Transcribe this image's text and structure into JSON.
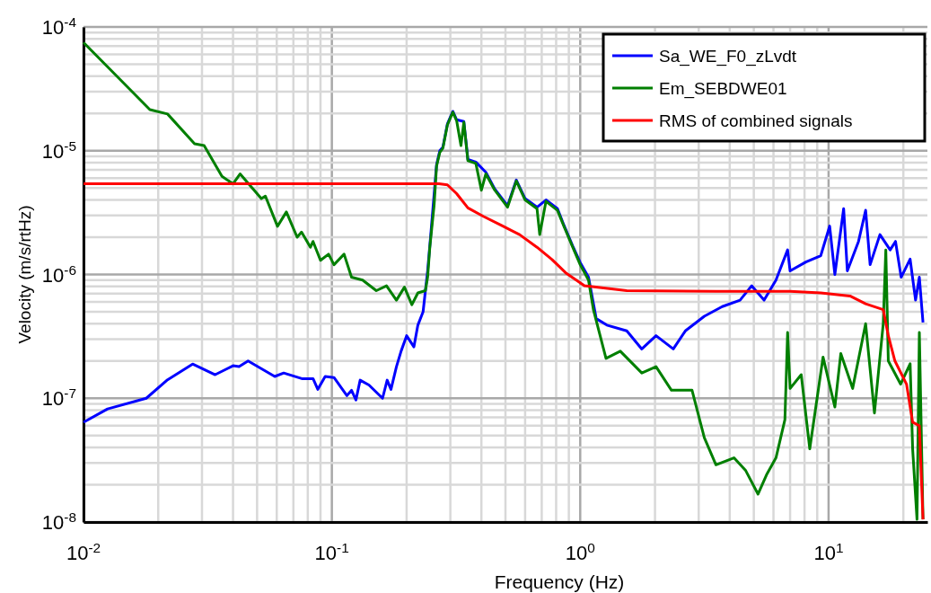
{
  "chart_data": {
    "type": "line",
    "xlabel": "Frequency (Hz)",
    "ylabel": "Velocity (m/s/rtHz)",
    "log": "xy",
    "grid": true,
    "legend": "top right",
    "marker": "none",
    "line_style": "solid",
    "xlim": [
      0.01,
      25
    ],
    "ylim": [
      1e-08,
      0.0001
    ],
    "xticks": [
      {
        "value": 0.01,
        "label": "10$^{-2}$"
      },
      {
        "value": 0.02,
        "label": null
      },
      {
        "value": 0.03,
        "label": null
      },
      {
        "value": 0.04,
        "label": null
      },
      {
        "value": 0.05,
        "label": null
      },
      {
        "value": 0.06,
        "label": null
      },
      {
        "value": 0.07,
        "label": null
      },
      {
        "value": 0.08,
        "label": null
      },
      {
        "value": 0.09,
        "label": null
      },
      {
        "value": 0.1,
        "label": "10$^{-1}$"
      },
      {
        "value": 0.2,
        "label": null
      },
      {
        "value": 0.3,
        "label": null
      },
      {
        "value": 0.4,
        "label": null
      },
      {
        "value": 0.5,
        "label": null
      },
      {
        "value": 0.6,
        "label": null
      },
      {
        "value": 0.7,
        "label": null
      },
      {
        "value": 0.8,
        "label": null
      },
      {
        "value": 0.9,
        "label": null
      },
      {
        "value": 1,
        "label": "10$^{0}$"
      },
      {
        "value": 2,
        "label": null
      },
      {
        "value": 3,
        "label": null
      },
      {
        "value": 4,
        "label": null
      },
      {
        "value": 5,
        "label": null
      },
      {
        "value": 6,
        "label": null
      },
      {
        "value": 7,
        "label": null
      },
      {
        "value": 8,
        "label": null
      },
      {
        "value": 9,
        "label": null
      },
      {
        "value": 10,
        "label": "10$^{1}$"
      },
      {
        "value": 20,
        "label": null
      }
    ],
    "yticks": [
      {
        "value": 1e-08,
        "label": "10$^{-8}$"
      },
      {
        "value": 2e-08,
        "label": null
      },
      {
        "value": 3e-08,
        "label": null
      },
      {
        "value": 4e-08,
        "label": null
      },
      {
        "value": 5e-08,
        "label": null
      },
      {
        "value": 6e-08,
        "label": null
      },
      {
        "value": 7e-08,
        "label": null
      },
      {
        "value": 8e-08,
        "label": null
      },
      {
        "value": 9e-08,
        "label": null
      },
      {
        "value": 1e-07,
        "label": "10$^{-7}$"
      },
      {
        "value": 2e-07,
        "label": null
      },
      {
        "value": 3e-07,
        "label": null
      },
      {
        "value": 4e-07,
        "label": null
      },
      {
        "value": 5e-07,
        "label": null
      },
      {
        "value": 6e-07,
        "label": null
      },
      {
        "value": 7e-07,
        "label": null
      },
      {
        "value": 8e-07,
        "label": null
      },
      {
        "value": 9e-07,
        "label": null
      },
      {
        "value": 1e-06,
        "label": "10$^{-6}$"
      },
      {
        "value": 2e-06,
        "label": null
      },
      {
        "value": 3e-06,
        "label": null
      },
      {
        "value": 4e-06,
        "label": null
      },
      {
        "value": 5e-06,
        "label": null
      },
      {
        "value": 6e-06,
        "label": null
      },
      {
        "value": 7e-06,
        "label": null
      },
      {
        "value": 8e-06,
        "label": null
      },
      {
        "value": 9e-06,
        "label": null
      },
      {
        "value": 1e-05,
        "label": "10$^{-5}$"
      },
      {
        "value": 2e-05,
        "label": null
      },
      {
        "value": 3e-05,
        "label": null
      },
      {
        "value": 4e-05,
        "label": null
      },
      {
        "value": 5e-05,
        "label": null
      },
      {
        "value": 6e-05,
        "label": null
      },
      {
        "value": 7e-05,
        "label": null
      },
      {
        "value": 8e-05,
        "label": null
      },
      {
        "value": 9e-05,
        "label": null
      },
      {
        "value": 0.0001,
        "label": "10$^{-4}$"
      }
    ],
    "series": [
      {
        "name": "Sa_WE_F0_zLvdt",
        "color": "#0000ff",
        "x": [
          0.01,
          0.0125,
          0.0179,
          0.0218,
          0.0275,
          0.0339,
          0.04,
          0.0423,
          0.046,
          0.0589,
          0.064,
          0.0757,
          0.084,
          0.0878,
          0.094,
          0.102,
          0.115,
          0.12,
          0.125,
          0.13,
          0.141,
          0.16,
          0.167,
          0.173,
          0.182,
          0.19,
          0.2,
          0.214,
          0.222,
          0.233,
          0.243,
          0.248,
          0.258,
          0.264,
          0.272,
          0.28,
          0.292,
          0.307,
          0.318,
          0.331,
          0.34,
          0.353,
          0.38,
          0.4,
          0.417,
          0.453,
          0.51,
          0.553,
          0.6,
          0.67,
          0.687,
          0.728,
          0.81,
          0.86,
          0.933,
          1.0,
          1.08,
          1.16,
          1.28,
          1.54,
          1.77,
          2.02,
          2.37,
          2.65,
          3.16,
          3.73,
          4.4,
          4.9,
          5.5,
          6.14,
          6.84,
          7.0,
          8.1,
          9.3,
          10.1,
          10.6,
          11.5,
          11.9,
          13.2,
          14.1,
          14.7,
          16.1,
          17.7,
          18.6,
          19.6,
          21.3,
          22.4,
          23.2,
          24
        ],
        "values": [
          6.4e-08,
          8.2e-08,
          1e-07,
          1.41e-07,
          1.89e-07,
          1.55e-07,
          1.83e-07,
          1.8e-07,
          2e-07,
          1.5e-07,
          1.6e-07,
          1.44e-07,
          1.44e-07,
          1.18e-07,
          1.5e-07,
          1.47e-07,
          1.05e-07,
          1.16e-07,
          9.7e-08,
          1.4e-07,
          1.28e-07,
          1e-07,
          1.4e-07,
          1.18e-07,
          1.8e-07,
          2.4e-07,
          3.2e-07,
          2.6e-07,
          3.9e-07,
          5e-07,
          1.07e-06,
          1.7e-06,
          null,
          7.7e-06,
          1e-05,
          1.07e-05,
          1.65e-05,
          2.08e-05,
          1.78e-05,
          null,
          1.72e-05,
          8.5e-06,
          8.1e-06,
          null,
          6.7e-06,
          4.9e-06,
          3.6e-06,
          5.8e-06,
          4.1e-06,
          3.5e-06,
          null,
          4e-06,
          3.4e-06,
          2.5e-06,
          1.7e-06,
          1.25e-06,
          9.5e-07,
          4.4e-07,
          3.9e-07,
          3.5e-07,
          2.5e-07,
          3.2e-07,
          2.5e-07,
          3.5e-07,
          4.6e-07,
          5.5e-07,
          6.2e-07,
          8.1e-07,
          6.2e-07,
          9e-07,
          1.58e-06,
          1.07e-06,
          1.26e-06,
          1.42e-06,
          2.46e-06,
          1e-06,
          3.4e-06,
          1.07e-06,
          1.85e-06,
          3.3e-06,
          1.2e-06,
          2.1e-06,
          1.58e-06,
          1.85e-06,
          9.5e-07,
          1.33e-06,
          6.2e-07,
          9.5e-07,
          4.1e-07
        ]
      },
      {
        "name": "Em_SEBDWE01",
        "color": "#007f00",
        "x": [
          0.01,
          0.0185,
          0.0218,
          0.028,
          0.0306,
          0.0361,
          0.04,
          0.0427,
          0.052,
          0.054,
          0.0604,
          0.0656,
          0.0725,
          0.0755,
          0.082,
          0.084,
          0.09,
          0.097,
          0.102,
          0.112,
          0.12,
          0.133,
          0.151,
          0.166,
          0.182,
          0.196,
          0.21,
          0.222,
          0.238,
          0.243,
          0.248,
          0.258,
          0.264,
          0.272,
          0.28,
          0.292,
          0.307,
          0.318,
          0.331,
          0.34,
          0.353,
          0.38,
          0.4,
          0.417,
          0.453,
          0.51,
          0.553,
          0.6,
          0.67,
          0.687,
          0.728,
          0.81,
          0.86,
          0.933,
          1.0,
          1.08,
          1.13,
          1.27,
          1.45,
          1.77,
          2.02,
          2.33,
          2.82,
          3.16,
          3.52,
          4.16,
          4.64,
          5.2,
          5.65,
          6.14,
          6.67,
          6.84,
          7.0,
          7.76,
          8.4,
          9.5,
          10.6,
          11.2,
          12.5,
          14.1,
          15.3,
          16.6,
          17,
          17.4,
          19.5,
          21.3,
          21.8,
          22.7,
          23.2,
          24
        ],
        "values": [
          7.5e-05,
          2.15e-05,
          1.98e-05,
          1.14e-05,
          1.1e-05,
          6.2e-06,
          5.4e-06,
          6.5e-06,
          4.1e-06,
          4.3e-06,
          2.45e-06,
          3.2e-06,
          2e-06,
          2.2e-06,
          1.66e-06,
          1.85e-06,
          1.3e-06,
          1.46e-06,
          1.2e-06,
          1.46e-06,
          9.5e-07,
          9e-07,
          7.4e-07,
          8.1e-07,
          6.2e-07,
          7.9e-07,
          5.7e-07,
          7.1e-07,
          7.4e-07,
          9.5e-07,
          1.66e-06,
          3.6e-06,
          7.5e-06,
          9.7e-06,
          1.05e-05,
          1.62e-05,
          2.05e-05,
          1.75e-05,
          1.1e-05,
          1.7e-05,
          8.3e-06,
          7.9e-06,
          4.8e-06,
          6.5e-06,
          4.8e-06,
          3.5e-06,
          5.7e-06,
          4e-06,
          3.4e-06,
          2.1e-06,
          3.9e-06,
          3.3e-06,
          2.45e-06,
          1.66e-06,
          1.2e-06,
          9e-07,
          5.2e-07,
          2.1e-07,
          2.4e-07,
          1.6e-07,
          1.8e-07,
          1.16e-07,
          1.16e-07,
          4.8e-08,
          2.9e-08,
          3.3e-08,
          2.6e-08,
          1.68e-08,
          2.45e-08,
          3.3e-08,
          6.7e-08,
          3.4e-07,
          1.2e-07,
          1.55e-07,
          3.9e-08,
          2.15e-07,
          8.5e-08,
          2.3e-07,
          1.2e-07,
          4e-07,
          7.6e-08,
          4e-07,
          1.58e-06,
          2e-07,
          1.3e-07,
          1.9e-07,
          3.9e-08,
          1.05e-08,
          3.4e-07,
          1.05e-08
        ]
      },
      {
        "name": "RMS of combined signals",
        "color": "#ff0000",
        "x": [
          0.01,
          0.27,
          0.292,
          0.318,
          0.353,
          0.407,
          0.48,
          0.57,
          0.67,
          0.77,
          0.88,
          1.04,
          1.54,
          3.52,
          7.0,
          9.3,
          12.2,
          14.1,
          16.6,
          17.4,
          18.5,
          20.6,
          21.8,
          23.2,
          24
        ],
        "values": [
          5.4e-06,
          5.4e-06,
          5.3e-06,
          4.5e-06,
          3.45e-06,
          2.95e-06,
          2.5e-06,
          2.1e-06,
          1.66e-06,
          1.32e-06,
          1.02e-06,
          8.1e-07,
          7.4e-07,
          7.3e-07,
          7.3e-07,
          7.1e-07,
          6.7e-07,
          5.8e-07,
          5.2e-07,
          3.2e-07,
          2e-07,
          1.3e-07,
          6.4e-08,
          6e-08,
          1.05e-08
        ]
      }
    ]
  }
}
